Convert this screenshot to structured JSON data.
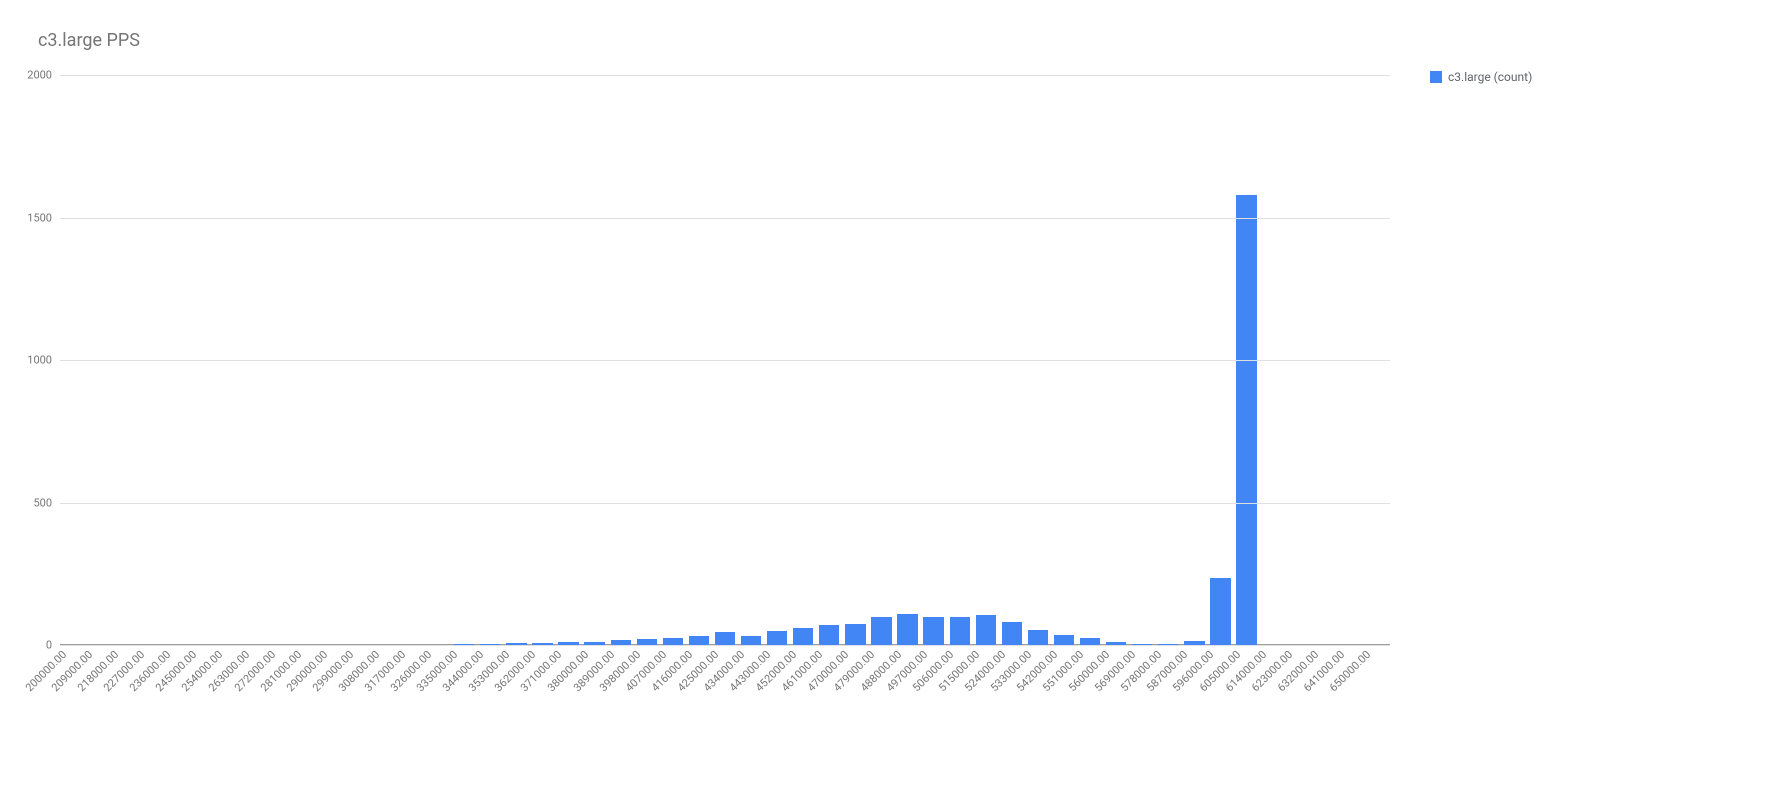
{
  "chart": {
    "type": "bar",
    "title": "c3.large PPS",
    "title_fontsize": 18,
    "title_color": "#757575",
    "legend": {
      "label": "c3.large (count)",
      "color": "#4285f4",
      "position": "right"
    },
    "background_color": "#ffffff",
    "grid_color": "#e0e0e0",
    "baseline_color": "#9e9e9e",
    "axis_label_color": "#757575",
    "axis_label_fontsize": 11,
    "y": {
      "min": 0,
      "max": 2000,
      "tick_step": 500,
      "ticks": [
        0,
        500,
        1000,
        1500,
        2000
      ]
    },
    "x": {
      "labels": [
        "200000.00",
        "209000.00",
        "218000.00",
        "227000.00",
        "236000.00",
        "245000.00",
        "254000.00",
        "263000.00",
        "272000.00",
        "281000.00",
        "290000.00",
        "299000.00",
        "308000.00",
        "317000.00",
        "326000.00",
        "335000.00",
        "344000.00",
        "353000.00",
        "362000.00",
        "371000.00",
        "380000.00",
        "389000.00",
        "398000.00",
        "407000.00",
        "416000.00",
        "425000.00",
        "434000.00",
        "443000.00",
        "452000.00",
        "461000.00",
        "470000.00",
        "479000.00",
        "488000.00",
        "497000.00",
        "506000.00",
        "515000.00",
        "524000.00",
        "533000.00",
        "542000.00",
        "551000.00",
        "560000.00",
        "569000.00",
        "578000.00",
        "587000.00",
        "596000.00",
        "605000.00",
        "614000.00",
        "623000.00",
        "632000.00",
        "641000.00",
        "650000.00"
      ]
    },
    "series": {
      "name": "c3.large (count)",
      "color": "#4285f4",
      "values": [
        0,
        0,
        0,
        0,
        0,
        0,
        0,
        0,
        0,
        0,
        0,
        0,
        0,
        0,
        0,
        5,
        5,
        8,
        8,
        10,
        12,
        16,
        22,
        23,
        30,
        45,
        32,
        48,
        60,
        70,
        75,
        100,
        110,
        98,
        100,
        105,
        80,
        52,
        35,
        25,
        12,
        5,
        3,
        15,
        235,
        1580,
        0,
        0,
        0,
        0,
        0
      ]
    },
    "bar_width_ratio": 0.78
  }
}
